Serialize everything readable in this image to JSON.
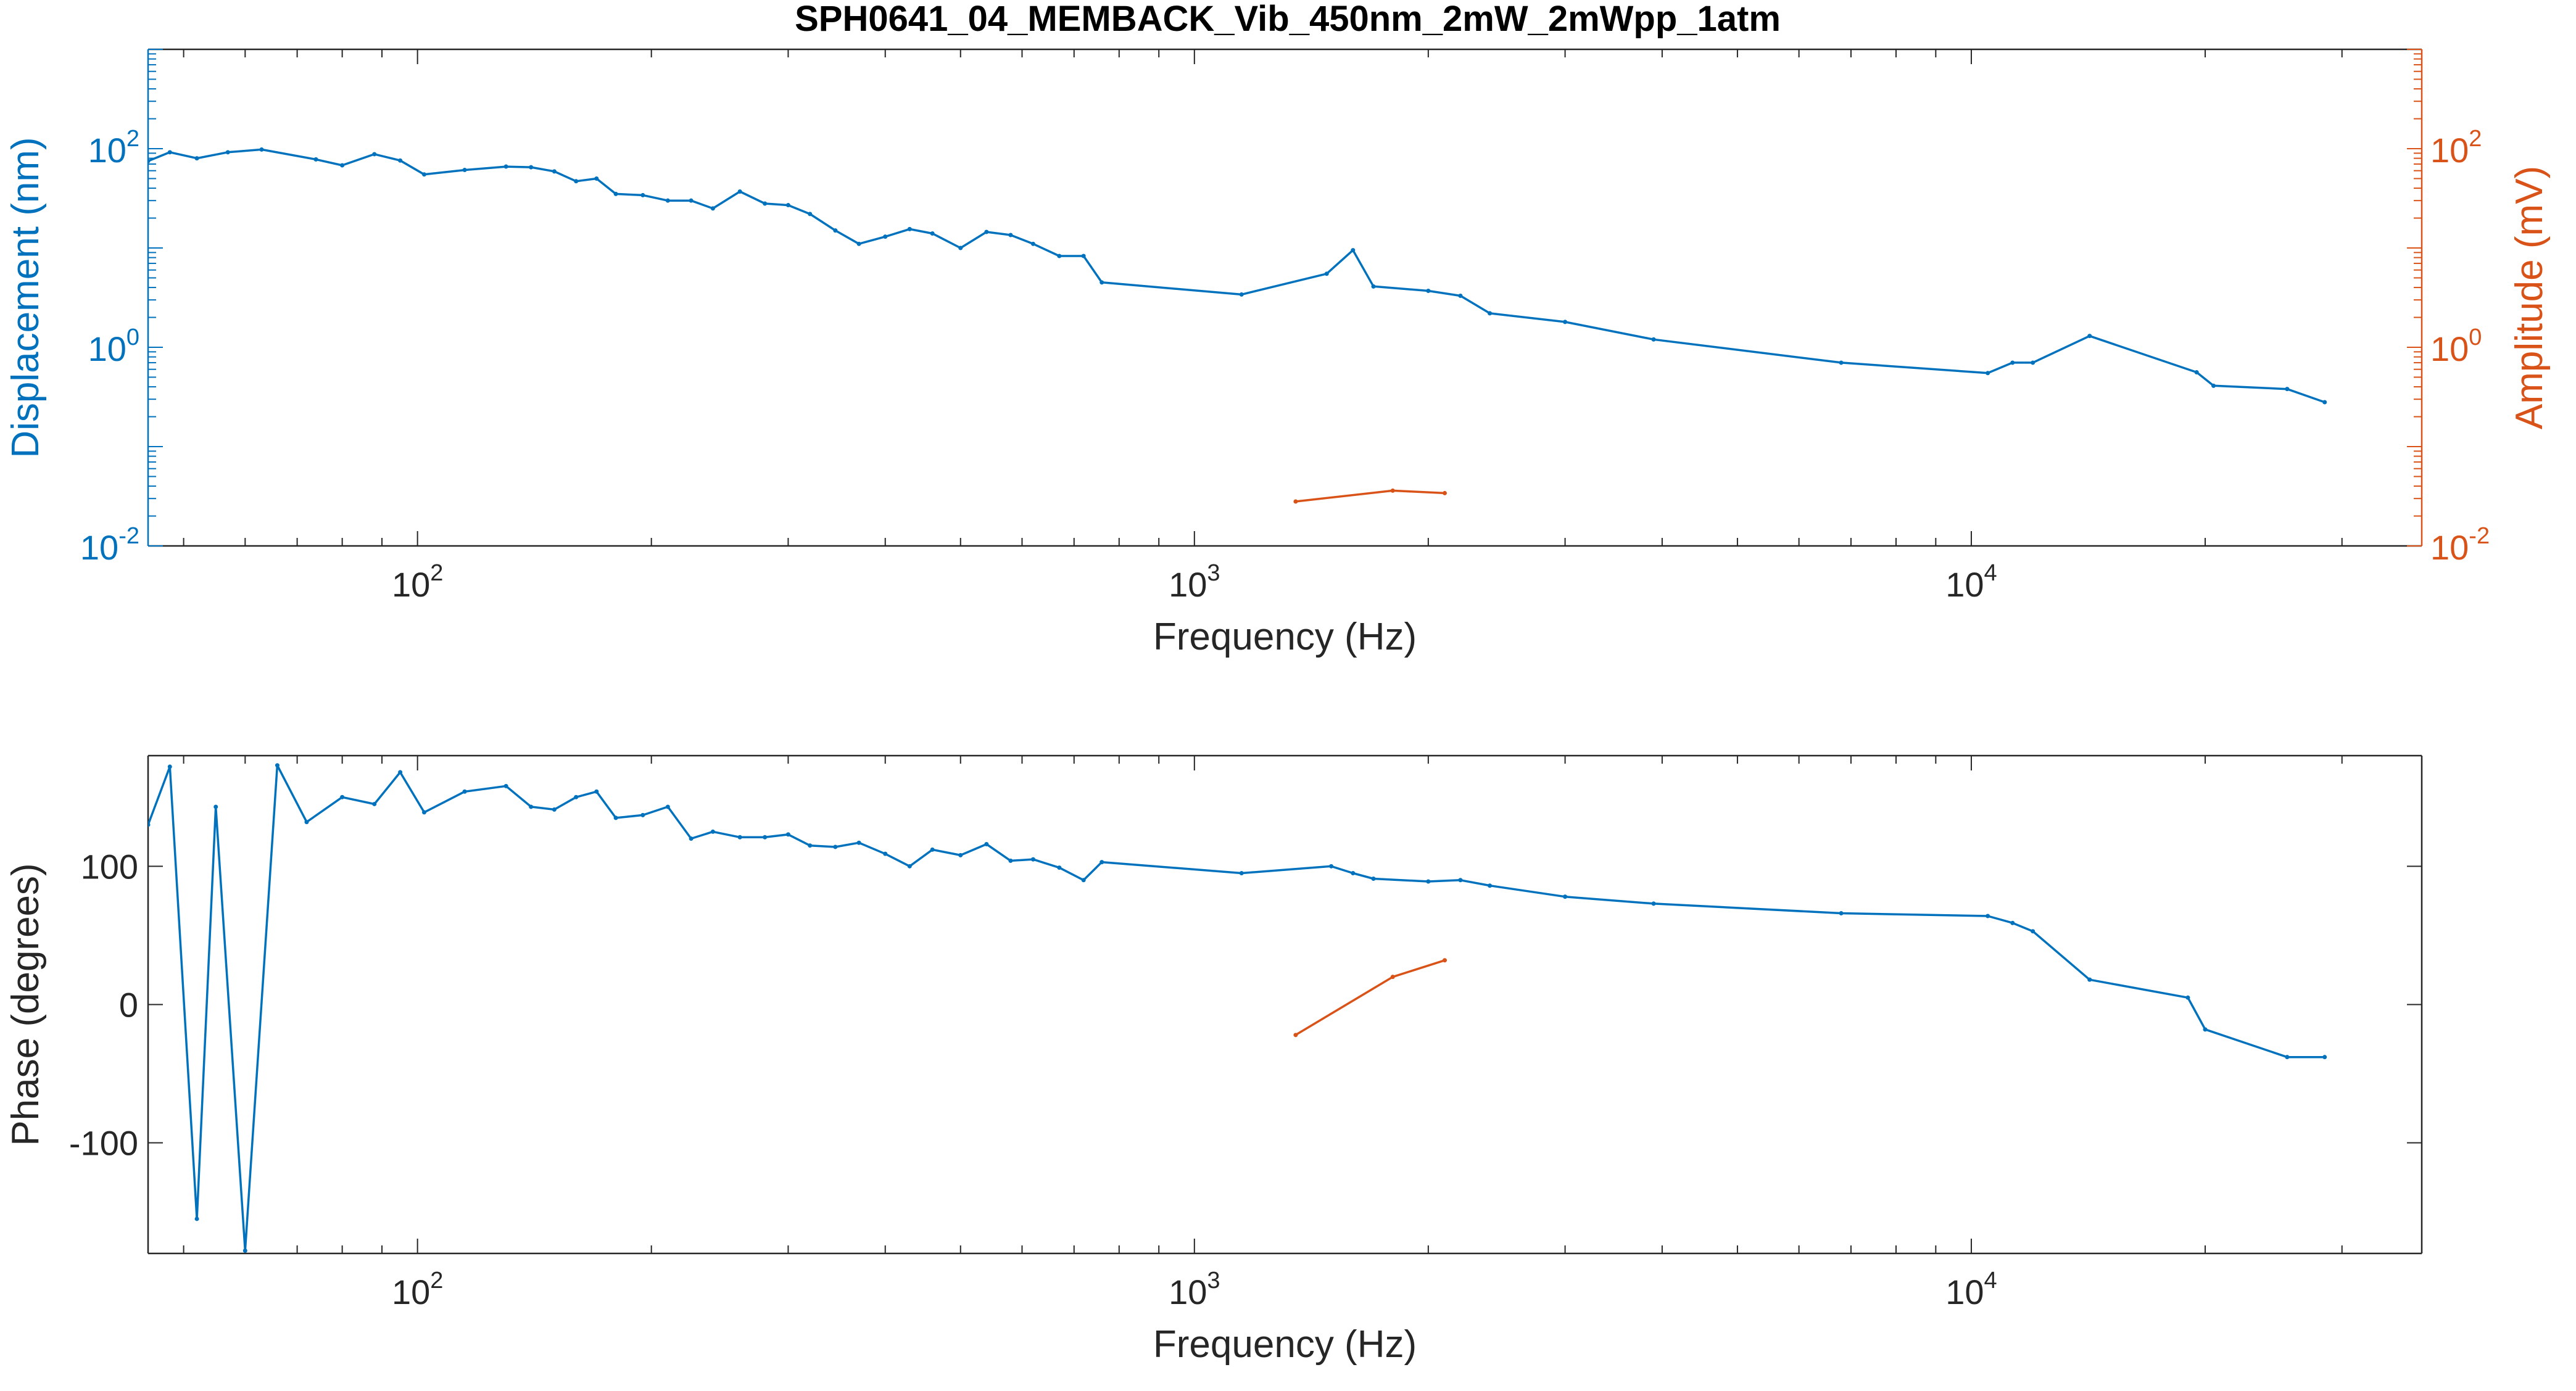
{
  "title": "SPH0641_04_MEMBACK_Vib_450nm_2mW_2mWpp_1atm",
  "colors": {
    "series_blue": "#0072BD",
    "series_orange": "#D95319",
    "axis": "#262626",
    "grid": "#dddddd"
  },
  "chart_data": [
    {
      "type": "line",
      "xscale": "log",
      "yscale": "log",
      "xlabel": "Frequency (Hz)",
      "ylabel": "Displacement (nm)",
      "y2label": "Amplitude (mV)",
      "xlim": [
        45,
        38000
      ],
      "ylim": [
        0.01,
        1000
      ],
      "y2lim": [
        0.01,
        1000
      ],
      "xticks": [
        100,
        1000,
        10000
      ],
      "xtick_labels": [
        {
          "base": "10",
          "exp": "2"
        },
        {
          "base": "10",
          "exp": "3"
        },
        {
          "base": "10",
          "exp": "4"
        }
      ],
      "yticks": [
        0.01,
        1,
        100
      ],
      "ytick_labels": [
        {
          "base": "10",
          "exp": "-2"
        },
        {
          "base": "10",
          "exp": "0"
        },
        {
          "base": "10",
          "exp": "2"
        }
      ],
      "y2ticks": [
        0.01,
        1,
        100
      ],
      "y2tick_labels": [
        {
          "base": "10",
          "exp": "-2"
        },
        {
          "base": "10",
          "exp": "0"
        },
        {
          "base": "10",
          "exp": "2"
        }
      ],
      "grid": false,
      "series": [
        {
          "axis": "left",
          "color": "#0072BD",
          "x": [
            45,
            48,
            52,
            57,
            63,
            74,
            80,
            88,
            95,
            102,
            115,
            130,
            140,
            150,
            160,
            170,
            180,
            195,
            210,
            225,
            240,
            260,
            280,
            300,
            320,
            345,
            370,
            400,
            430,
            460,
            500,
            540,
            580,
            620,
            670,
            720,
            760,
            1150,
            1480,
            1600,
            1700,
            2000,
            2200,
            2400,
            3000,
            3900,
            6800,
            10500,
            11300,
            12000,
            14200,
            19500,
            20500,
            25500,
            28500
          ],
          "y": [
            75,
            92,
            80,
            92,
            98,
            78,
            68,
            88,
            76,
            55,
            61,
            66,
            65,
            59,
            47,
            50,
            35,
            34,
            30,
            30,
            25,
            37,
            28,
            27,
            22,
            15,
            11,
            13,
            15.5,
            14,
            10,
            14.5,
            13.5,
            11,
            8.3,
            8.3,
            4.5,
            3.4,
            5.5,
            9.5,
            4.1,
            3.7,
            3.3,
            2.2,
            1.8,
            1.2,
            0.7,
            0.55,
            0.7,
            0.7,
            1.3,
            0.56,
            0.41,
            0.38,
            0.28
          ]
        },
        {
          "axis": "right",
          "color": "#D95319",
          "x": [
            1350,
            1800,
            2100
          ],
          "y": [
            0.028,
            0.036,
            0.034
          ]
        }
      ]
    },
    {
      "type": "line",
      "xscale": "log",
      "yscale": "linear",
      "xlabel": "Frequency (Hz)",
      "ylabel": "Phase (degrees)",
      "xlim": [
        45,
        38000
      ],
      "ylim": [
        -180,
        180
      ],
      "xticks": [
        100,
        1000,
        10000
      ],
      "xtick_labels": [
        {
          "base": "10",
          "exp": "2"
        },
        {
          "base": "10",
          "exp": "3"
        },
        {
          "base": "10",
          "exp": "4"
        }
      ],
      "yticks": [
        -100,
        0,
        100
      ],
      "ytick_labels": [
        "-100",
        "0",
        "100"
      ],
      "grid": false,
      "series": [
        {
          "color": "#0072BD",
          "x": [
            45,
            48,
            52,
            55,
            60,
            66,
            72,
            80,
            88,
            95,
            102,
            115,
            130,
            140,
            150,
            160,
            170,
            180,
            195,
            210,
            225,
            240,
            260,
            280,
            300,
            320,
            345,
            370,
            400,
            430,
            460,
            500,
            540,
            580,
            620,
            670,
            720,
            760,
            1150,
            1500,
            1600,
            1700,
            2000,
            2200,
            2400,
            3000,
            3900,
            6800,
            10500,
            11300,
            12000,
            14200,
            19000,
            20000,
            25500,
            28500
          ],
          "y": [
            130,
            172,
            -155,
            143,
            -178,
            173,
            132,
            150,
            145,
            168,
            139,
            154,
            158,
            143,
            141,
            150,
            154,
            135,
            137,
            143,
            120,
            125,
            121,
            121,
            123,
            115,
            114,
            117,
            109,
            100,
            112,
            108,
            116,
            104,
            105,
            99,
            90,
            103,
            95,
            100,
            95,
            91,
            89,
            90,
            86,
            78,
            73,
            66,
            64,
            59,
            53,
            18,
            5,
            -18,
            -38,
            -38
          ]
        },
        {
          "color": "#D95319",
          "x": [
            1350,
            1800,
            2100
          ],
          "y": [
            -22,
            20,
            32
          ]
        }
      ]
    }
  ]
}
